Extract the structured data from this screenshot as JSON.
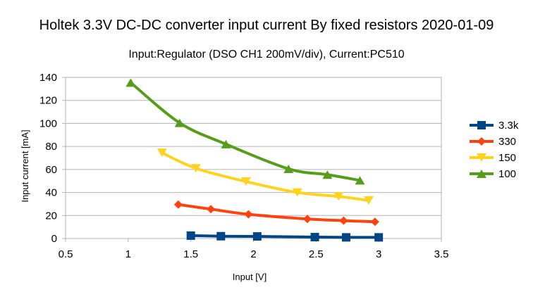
{
  "chart_data": {
    "type": "line",
    "title": "Holtek 3.3V DC-DC converter input current By fixed resistors 2020-01-09",
    "subtitle": "Input:Regulator (DSO CH1 200mV/div), Current:PC510",
    "xlabel": "Input [V]",
    "ylabel": "Input current [mA]",
    "xlim": [
      0.5,
      3.5
    ],
    "ylim": [
      0,
      140
    ],
    "xticks": [
      0.5,
      1,
      1.5,
      2,
      2.5,
      3,
      3.5
    ],
    "xtick_labels": [
      "0.5",
      "1",
      "1.5",
      "2",
      "2.5",
      "3",
      "3.5"
    ],
    "yticks": [
      0,
      20,
      40,
      60,
      80,
      100,
      120,
      140
    ],
    "ytick_labels": [
      "0",
      "20",
      "40",
      "60",
      "80",
      "100",
      "120",
      "140"
    ],
    "grid": true,
    "legend_position": "right",
    "series": [
      {
        "name": "3.3k",
        "color": "#004586",
        "marker": "square",
        "x": [
          1.5,
          1.74,
          2.03,
          2.49,
          2.74,
          3.0
        ],
        "y": [
          2.5,
          2.0,
          1.8,
          1.2,
          1.0,
          1.0
        ]
      },
      {
        "name": "330",
        "color": "#ff420e",
        "marker": "diamond",
        "x": [
          1.4,
          1.66,
          1.96,
          2.43,
          2.72,
          2.97
        ],
        "y": [
          29.5,
          25.5,
          21.0,
          17.0,
          15.5,
          14.5
        ]
      },
      {
        "name": "150",
        "color": "#ffd320",
        "marker": "triangle-down",
        "x": [
          1.27,
          1.54,
          1.94,
          2.35,
          2.68,
          2.92
        ],
        "y": [
          74.5,
          61.0,
          49.5,
          40.0,
          36.5,
          33.0
        ]
      },
      {
        "name": "100",
        "color": "#579d1c",
        "marker": "triangle-up",
        "x": [
          1.02,
          1.41,
          1.78,
          2.28,
          2.59,
          2.85
        ],
        "y": [
          135.5,
          100.5,
          82.0,
          60.5,
          55.5,
          50.5
        ]
      }
    ]
  }
}
